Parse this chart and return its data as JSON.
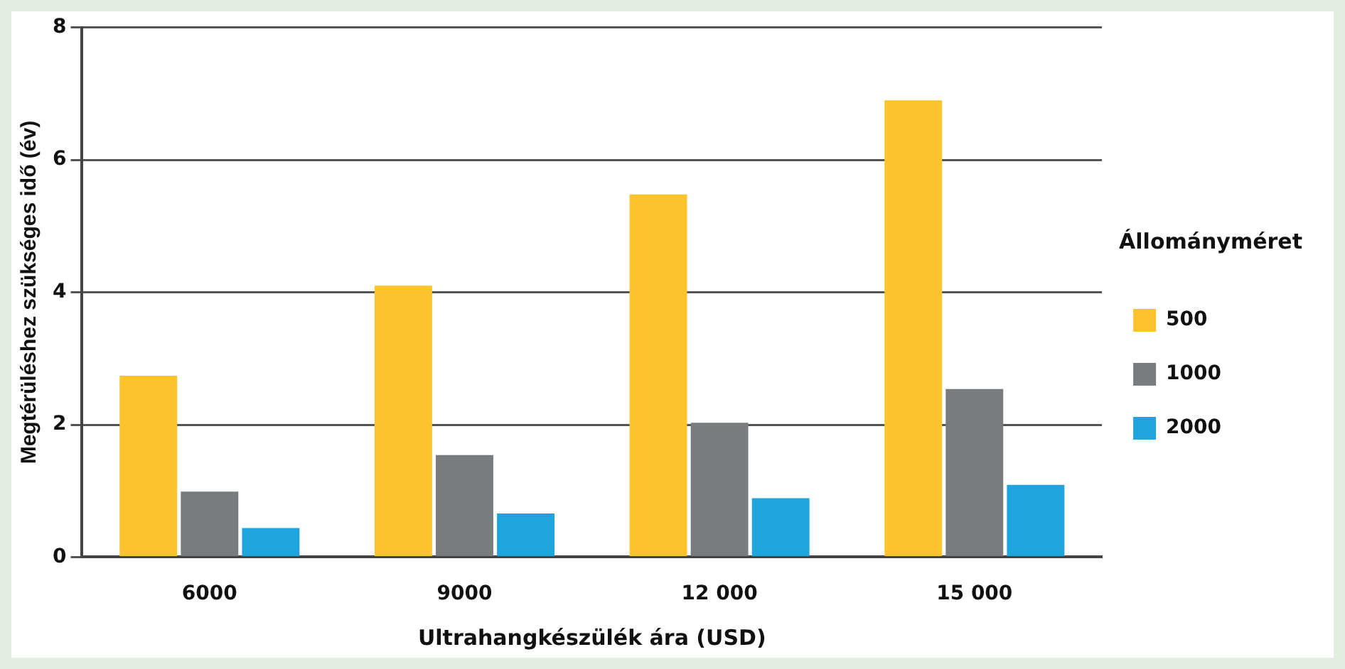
{
  "chart_data": {
    "type": "bar",
    "xlabel": "Ultrahangkészülék ára (USD)",
    "ylabel": "Megtérüléshez szükséges idő (év)",
    "legend_title": "Állományméret",
    "categories": [
      "6000",
      "9000",
      "12 000",
      "15 000"
    ],
    "series": [
      {
        "name": "500",
        "color": "#fcc32c",
        "values": [
          2.74,
          4.1,
          5.48,
          6.9
        ]
      },
      {
        "name": "1000",
        "color": "#787c7e",
        "values": [
          0.99,
          1.54,
          2.03,
          2.54
        ]
      },
      {
        "name": "2000",
        "color": "#1ea5de",
        "values": [
          0.44,
          0.66,
          0.89,
          1.09
        ]
      }
    ],
    "ylim": [
      0,
      8
    ],
    "yticks": [
      0,
      2,
      4,
      6,
      8
    ],
    "grid": "y",
    "legend": "right"
  }
}
